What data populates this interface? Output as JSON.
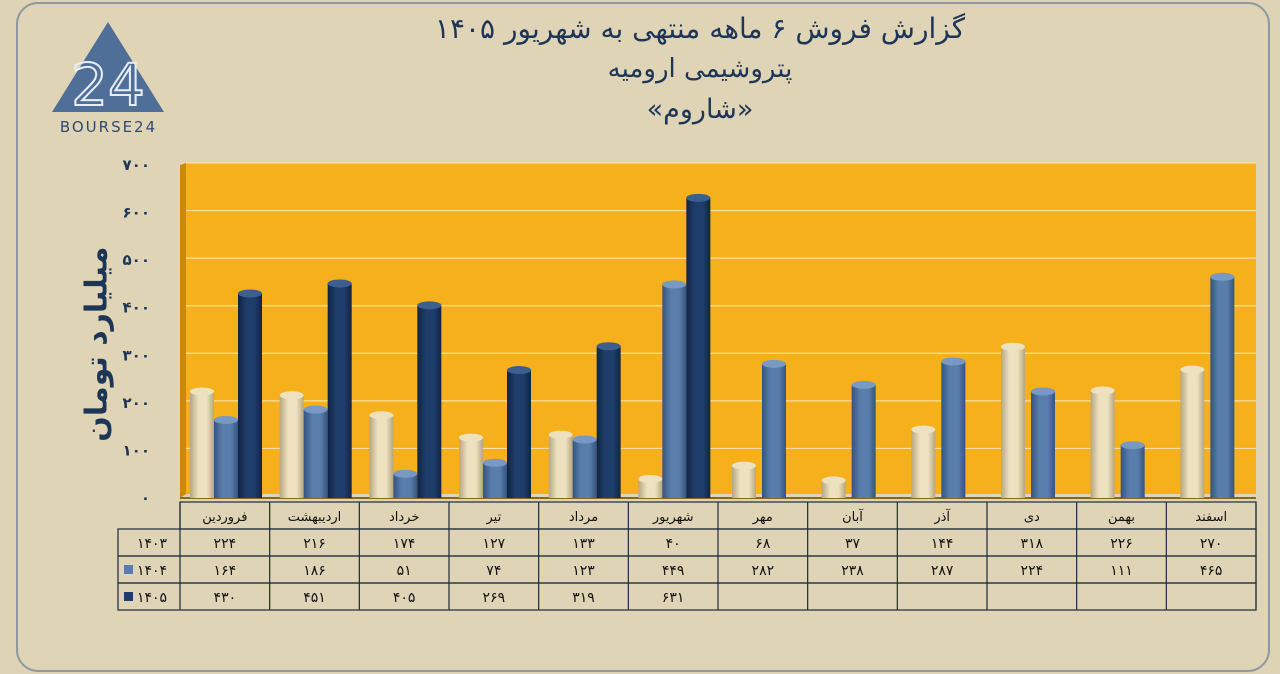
{
  "title": {
    "line1": "گزارش  فروش ۶ ماهه منتهی به شهریور ۱۴۰۵",
    "line2": "پتروشیمی ارومیه",
    "line3": "«شاروم»"
  },
  "logo": {
    "text": "BOURSE24",
    "mark": "24"
  },
  "colors": {
    "background": "#e0d4b6",
    "plot": "#f5b01c",
    "s1403": "#ede1bf",
    "s1404": "#5a7eab",
    "s1405": "#1f3d6b",
    "text": "#1d3557"
  },
  "chart_data": {
    "type": "bar",
    "ylabel": "میلیارد تومان",
    "ylim": [
      0,
      700
    ],
    "yticks": [
      "۰",
      "۱۰۰",
      "۲۰۰",
      "۳۰۰",
      "۴۰۰",
      "۵۰۰",
      "۶۰۰",
      "۷۰۰"
    ],
    "categories": [
      "فروردین",
      "اردیبهشت",
      "خرداد",
      "تیر",
      "مرداد",
      "شهریور",
      "مهر",
      "آبان",
      "آذر",
      "دی",
      "بهمن",
      "اسفند"
    ],
    "series": [
      {
        "name": "۱۴۰۳",
        "values": [
          224,
          216,
          174,
          127,
          133,
          40,
          68,
          37,
          144,
          318,
          226,
          270
        ],
        "labels": [
          "۲۲۴",
          "۲۱۶",
          "۱۷۴",
          "۱۲۷",
          "۱۳۳",
          "۴۰",
          "۶۸",
          "۳۷",
          "۱۴۴",
          "۳۱۸",
          "۲۲۶",
          "۲۷۰"
        ]
      },
      {
        "name": "۱۴۰۴",
        "values": [
          164,
          186,
          51,
          74,
          123,
          449,
          282,
          238,
          287,
          224,
          111,
          465
        ],
        "labels": [
          "۱۶۴",
          "۱۸۶",
          "۵۱",
          "۷۴",
          "۱۲۳",
          "۴۴۹",
          "۲۸۲",
          "۲۳۸",
          "۲۸۷",
          "۲۲۴",
          "۱۱۱",
          "۴۶۵"
        ]
      },
      {
        "name": "۱۴۰۵",
        "values": [
          430,
          451,
          405,
          269,
          319,
          631,
          null,
          null,
          null,
          null,
          null,
          null
        ],
        "labels": [
          "۴۳۰",
          "۴۵۱",
          "۴۰۵",
          "۲۶۹",
          "۳۱۹",
          "۶۳۱",
          "",
          "",
          "",
          "",
          "",
          ""
        ]
      }
    ],
    "grid": true,
    "legend": "data-table"
  }
}
